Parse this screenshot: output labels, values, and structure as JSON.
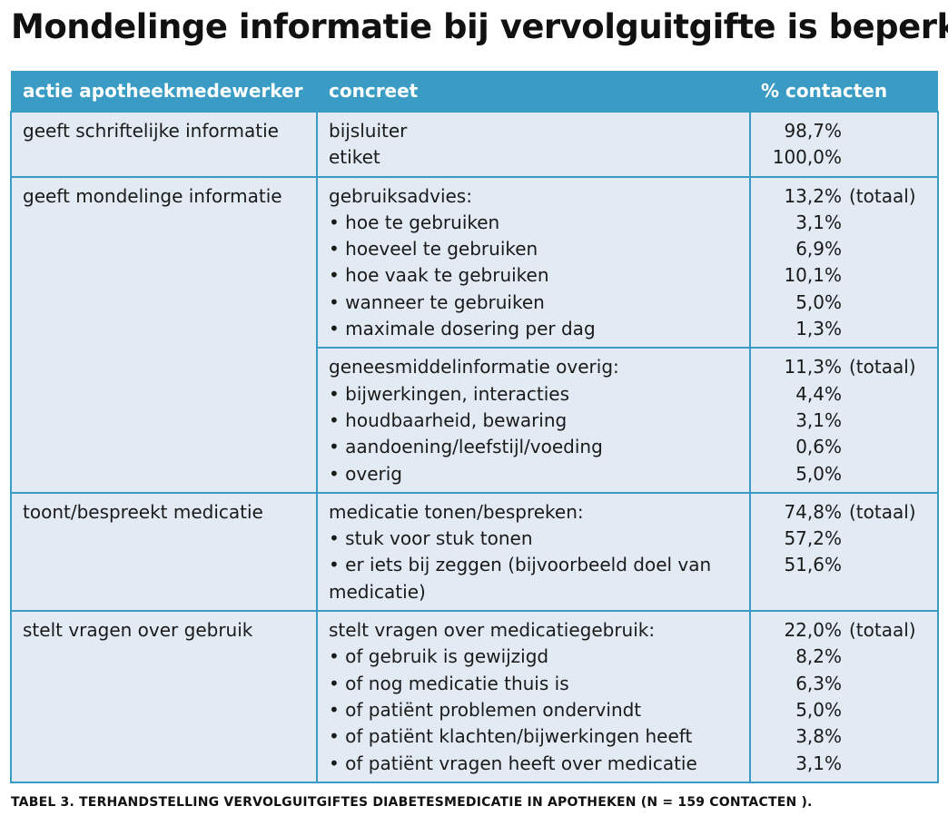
{
  "title": "Mondelinge informatie bij vervolguitgifte is beperkt",
  "headers": [
    "actie apotheekmedewerker",
    "concreet",
    "% contacten"
  ],
  "rows": [
    {
      "action": "geeft schriftelijke informatie",
      "lines": [
        {
          "text": "bijsluiter",
          "pct": "98,7%"
        },
        {
          "text": "etiket",
          "pct": "100,0%"
        }
      ]
    },
    {
      "action": "geeft mondelinge informatie",
      "lines": [
        {
          "text": "gebruiksadvies:",
          "pct": "13,2%",
          "note": "(totaal)"
        },
        {
          "text": "• hoe te gebruiken",
          "pct": "3,1%"
        },
        {
          "text": "• hoeveel te gebruiken",
          "pct": "6,9%"
        },
        {
          "text": "• hoe vaak te gebruiken",
          "pct": "10,1%"
        },
        {
          "text": "• wanneer te gebruiken",
          "pct": "5,0%"
        },
        {
          "text": "• maximale dosering per dag",
          "pct": "1,3%"
        }
      ]
    },
    {
      "action": "",
      "lines": [
        {
          "text": "geneesmiddelinformatie overig:",
          "pct": "11,3%",
          "note": "(totaal)"
        },
        {
          "text": "• bijwerkingen, interacties",
          "pct": "4,4%"
        },
        {
          "text": "• houdbaarheid, bewaring",
          "pct": "3,1%"
        },
        {
          "text": "• aandoening/leefstijl/voeding",
          "pct": "0,6%"
        },
        {
          "text": "• overig",
          "pct": "5,0%"
        }
      ]
    },
    {
      "action": "toont/bespreekt medicatie",
      "lines": [
        {
          "text": "medicatie tonen/bespreken:",
          "pct": "74,8%",
          "note": "(totaal)"
        },
        {
          "text": "• stuk voor stuk tonen",
          "pct": "57,2%"
        },
        {
          "text": "• er iets bij zeggen (bijvoorbeeld doel van medicatie)",
          "pct": "51,6%"
        }
      ]
    },
    {
      "action": "stelt vragen over gebruik",
      "lines": [
        {
          "text": "stelt vragen over medicatiegebruik:",
          "pct": "22,0%",
          "note": "(totaal)"
        },
        {
          "text": "• of gebruik is gewijzigd",
          "pct": "8,2%"
        },
        {
          "text": "• of nog medicatie thuis is",
          "pct": "6,3%"
        },
        {
          "text": "• of patiënt problemen ondervindt",
          "pct": "5,0%"
        },
        {
          "text": "• of patiënt klachten/bijwerkingen heeft",
          "pct": "3,8%"
        },
        {
          "text": "• of patiënt vragen heeft over medicatie",
          "pct": "3,1%"
        }
      ]
    }
  ],
  "caption": "TABEL 3. TERHANDSTELLING VERVOLGUITGIFTES DIABETESMEDICATIE IN APOTHEKEN (N = 159 CONTACTEN )."
}
